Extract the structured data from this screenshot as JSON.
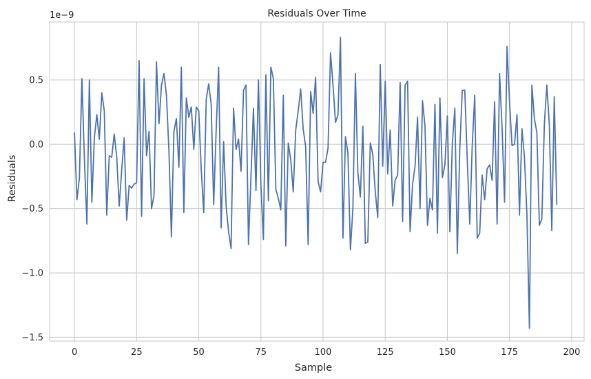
{
  "chart_data": {
    "type": "line",
    "title": "Residuals Over Time",
    "xlabel": "Sample",
    "ylabel": "Residuals",
    "y_offset_text": "1e−9",
    "xlim": [
      -10,
      205
    ],
    "ylim": [
      -1.53e-09,
      9.5e-10
    ],
    "xticks": [
      0,
      25,
      50,
      75,
      100,
      125,
      150,
      175,
      200
    ],
    "xtick_labels": [
      "0",
      "25",
      "50",
      "75",
      "100",
      "125",
      "150",
      "175",
      "200"
    ],
    "yticks": [
      -1.5e-09,
      -1e-09,
      -5e-10,
      0.0,
      5e-10
    ],
    "ytick_labels": [
      "−1.5",
      "−1.0",
      "−0.5",
      "0.0",
      "0.5"
    ],
    "grid": true,
    "line_color": "#4c72b0",
    "series": [
      {
        "x": [
          0,
          1,
          2,
          3,
          4,
          5,
          6,
          7,
          8,
          9,
          10,
          11,
          12,
          13,
          14,
          15,
          16,
          17,
          18,
          19,
          20,
          21,
          22,
          23,
          24,
          25,
          26,
          27,
          28,
          29,
          30,
          31,
          32,
          33,
          34,
          35,
          36,
          37,
          38,
          39,
          40,
          41,
          42,
          43,
          44,
          45,
          46,
          47,
          48,
          49,
          50,
          51,
          52,
          53,
          54,
          55,
          56,
          57,
          58,
          59,
          60,
          61,
          62,
          63,
          64,
          65,
          66,
          67,
          68,
          69,
          70,
          71,
          72,
          73,
          74,
          75,
          76,
          77,
          78,
          79,
          80,
          81,
          82,
          83,
          84,
          85,
          86,
          87,
          88,
          89,
          90,
          91,
          92,
          93,
          94,
          95,
          96,
          97,
          98,
          99,
          100,
          101,
          102,
          103,
          104,
          105,
          106,
          107,
          108,
          109,
          110,
          111,
          112,
          113,
          114,
          115,
          116,
          117,
          118,
          119,
          120,
          121,
          122,
          123,
          124,
          125,
          126,
          127,
          128,
          129,
          130,
          131,
          132,
          133,
          134,
          135,
          136,
          137,
          138,
          139,
          140,
          141,
          142,
          143,
          144,
          145,
          146,
          147,
          148,
          149,
          150,
          151,
          152,
          153,
          154,
          155,
          156,
          157,
          158,
          159,
          160,
          161,
          162,
          163,
          164,
          165,
          166,
          167,
          168,
          169,
          170,
          171,
          172,
          173,
          174,
          175,
          176,
          177,
          178,
          179,
          180,
          181,
          182,
          183,
          184,
          185,
          186,
          187,
          188,
          189,
          190,
          191,
          192,
          193,
          194
        ],
        "y": [
          9e-11,
          -4.3e-10,
          -2.6e-10,
          5.1e-10,
          -1.1e-10,
          -6.2e-10,
          5e-10,
          -4.5e-10,
          5e-11,
          2.3e-10,
          4e-11,
          4e-10,
          2.6e-10,
          -5.5e-10,
          -9e-11,
          -1e-10,
          8e-11,
          -1e-10,
          -4.8e-10,
          -2e-10,
          5e-11,
          -5.9e-10,
          -3.2e-10,
          -3.4e-10,
          -3.1e-10,
          -3e-10,
          6.5e-10,
          -5.6e-10,
          5.1e-10,
          -9e-11,
          1e-10,
          -5e-10,
          -4e-10,
          6.4e-10,
          1.6e-10,
          4.6e-10,
          5.5e-10,
          3.8e-10,
          -5e-11,
          -7.2e-10,
          1e-10,
          2e-10,
          -1.8e-10,
          6e-10,
          -5.3e-10,
          3.6e-10,
          2.1e-10,
          2.9e-10,
          -4e-11,
          2.9e-10,
          2.6e-10,
          -2e-10,
          -5.3e-10,
          3.5e-10,
          4.7e-10,
          3.1e-10,
          -4.7e-10,
          1.1e-10,
          6e-10,
          -6.5e-10,
          2e-11,
          -4.8e-10,
          -6.8e-10,
          -8.1e-10,
          2.8e-10,
          -4e-11,
          4e-11,
          -2.1e-10,
          4.2e-10,
          4.6e-10,
          -7.8e-10,
          -2.5e-10,
          2.8e-10,
          -3.6e-10,
          5e-10,
          -3.2e-10,
          -7.4e-10,
          5.4e-10,
          -4.4e-10,
          6e-10,
          5.1e-10,
          -3.5e-10,
          -4.2e-10,
          -5.1e-10,
          3.8e-10,
          -7.9e-10,
          1e-11,
          -1.2e-10,
          -3.7e-10,
          1.1e-10,
          2.6e-10,
          4.3e-10,
          1.2e-10,
          -2e-11,
          -7.8e-10,
          4.1e-10,
          2.4e-10,
          5.2e-10,
          -2.9e-10,
          -3.7e-10,
          -1.4e-10,
          -1.4e-10,
          -3e-11,
          7.1e-10,
          4.6e-10,
          1.7e-10,
          2.3e-10,
          8.3e-10,
          -7.3e-10,
          6e-11,
          -7e-11,
          -8.2e-10,
          -5e-10,
          5.5e-10,
          -2.2e-10,
          -4.1e-10,
          1.4e-10,
          -7.7e-10,
          -7.6e-10,
          1e-11,
          -8e-11,
          -3.7e-10,
          -5.7e-10,
          6.2e-10,
          -1.7e-10,
          4.9e-10,
          -2.3e-10,
          1.1e-10,
          -4.8e-10,
          -2.8e-10,
          -2.4e-10,
          4.8e-10,
          -6e-10,
          4.6e-10,
          4.9e-10,
          -6.8e-10,
          -3.1e-10,
          -1.7e-10,
          2.1e-10,
          -5e-10,
          3.4e-10,
          1.4e-10,
          -6.3e-10,
          -4.2e-10,
          -5.1e-10,
          3.1e-10,
          -6.9e-10,
          3.6e-10,
          -2.6e-10,
          -1.6e-10,
          2.2e-10,
          -6.8e-10,
          1e-11,
          2.8e-10,
          -8.5e-10,
          -3e-11,
          4.2e-10,
          4.2e-10,
          -1.2e-10,
          -6.2e-10,
          -1e-11,
          3.8e-10,
          -7.3e-10,
          -6.9e-10,
          -2.4e-10,
          -4.3e-10,
          -1.9e-10,
          -1.6e-10,
          -2.8e-10,
          3.3e-10,
          -6.2e-10,
          5.5e-10,
          1.3e-10,
          -4.5e-10,
          7.6e-10,
          3.3e-10,
          -1e-11,
          0.0,
          2.3e-10,
          -5.5e-10,
          1.2e-10,
          -1e-10,
          -5.5e-10,
          -1.43e-09,
          4.6e-10,
          2e-10,
          9e-11,
          -6.3e-10,
          -5.8e-10,
          1.5e-10,
          4.6e-10,
          1.6e-10,
          -6.7e-10,
          3.7e-10,
          -4.7e-10
        ]
      }
    ]
  }
}
